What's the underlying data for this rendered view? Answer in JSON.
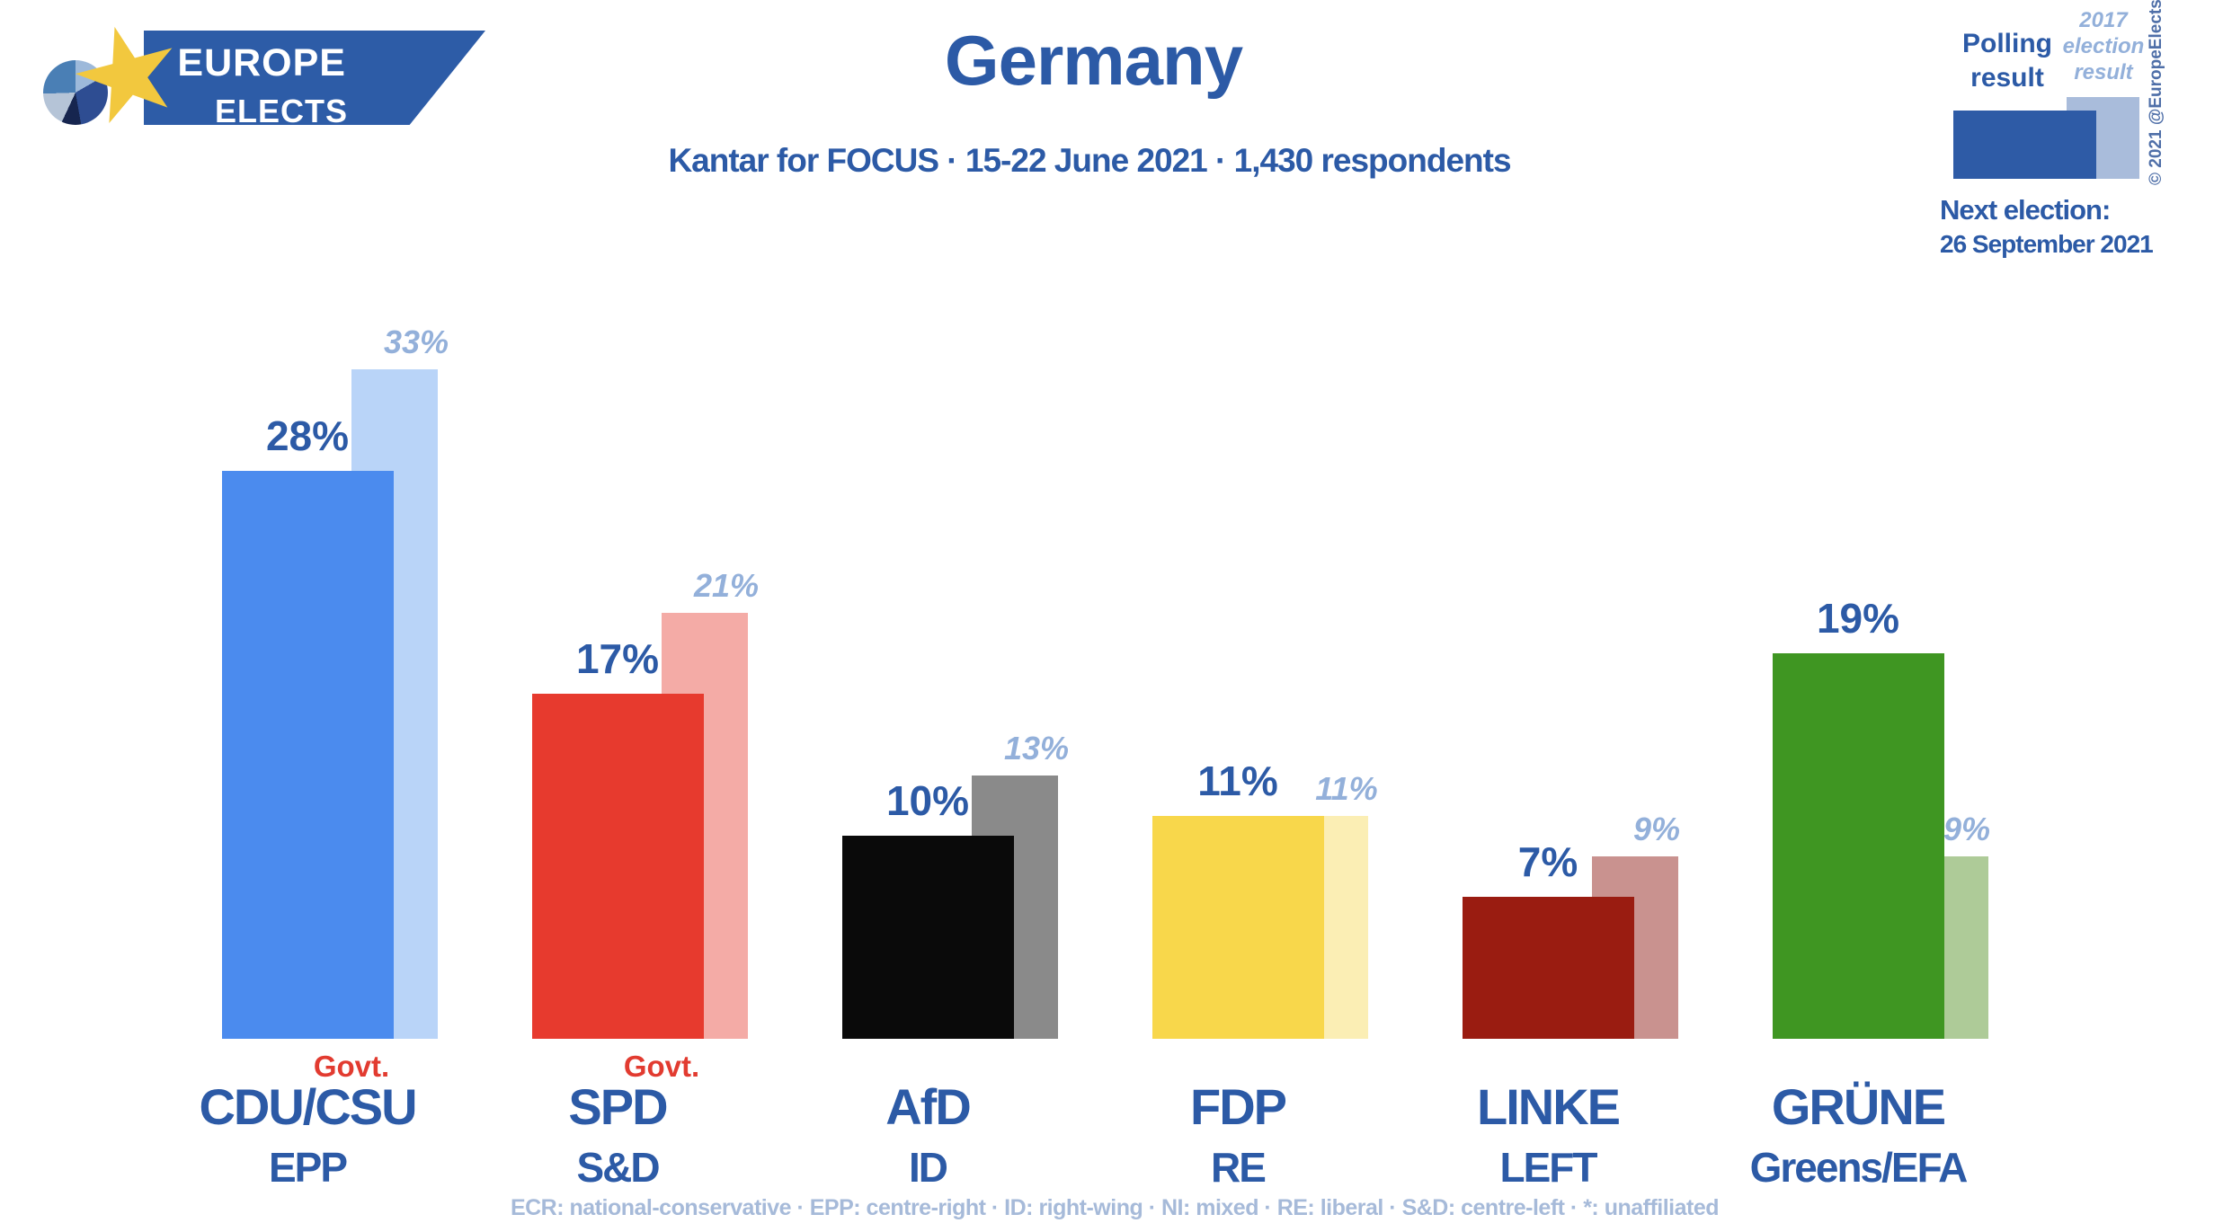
{
  "logo": {
    "line1": "EUROPE",
    "line2": "ELECTS"
  },
  "header": {
    "title": "Germany",
    "subtitle": "Kantar for FOCUS · 15-22 June 2021 · 1,430 respondents"
  },
  "legend": {
    "polling_label": "Polling\nresult",
    "election_label": "2017\nelection\nresult",
    "copyright": "© 2021 @EuropeElects",
    "next_election_label": "Next election:",
    "next_election_date": "26 September 2021",
    "colors": {
      "polling": "#2e5ba6",
      "election": "#a9bcdb"
    }
  },
  "chart_data": {
    "type": "bar",
    "unit": "%",
    "title": "Germany",
    "categories": [
      "CDU/CSU",
      "SPD",
      "AfD",
      "FDP",
      "LINKE",
      "GRÜNE"
    ],
    "series": [
      {
        "name": "Polling result",
        "values": [
          28,
          17,
          10,
          11,
          7,
          19
        ]
      },
      {
        "name": "2017 election result",
        "values": [
          33,
          21,
          13,
          11,
          9,
          9
        ]
      }
    ],
    "parties": [
      {
        "name": "CDU/CSU",
        "group": "EPP",
        "govt": true,
        "polling": 28,
        "election2017": 33,
        "polling_color": "#4b8bee",
        "election_color": "#b9d4f8"
      },
      {
        "name": "SPD",
        "group": "S&D",
        "govt": true,
        "polling": 17,
        "election2017": 21,
        "polling_color": "#e73a2e",
        "election_color": "#f4aba6"
      },
      {
        "name": "AfD",
        "group": "ID",
        "govt": false,
        "polling": 10,
        "election2017": 13,
        "polling_color": "#0a0a0a",
        "election_color": "#8a8a8a"
      },
      {
        "name": "FDP",
        "group": "RE",
        "govt": false,
        "polling": 11,
        "election2017": 11,
        "polling_color": "#f8d74b",
        "election_color": "#fbeeb4"
      },
      {
        "name": "LINKE",
        "group": "LEFT",
        "govt": false,
        "polling": 7,
        "election2017": 9,
        "polling_color": "#9a1c11",
        "election_color": "#c9928f"
      },
      {
        "name": "GRÜNE",
        "group": "Greens/EFA",
        "govt": false,
        "polling": 19,
        "election2017": 9,
        "polling_color": "#3f9622",
        "election_color": "#aecb98"
      }
    ],
    "govt_label": "Govt.",
    "ylim": [
      0,
      35
    ],
    "grid": false,
    "legend_position": "top-right"
  },
  "footer": {
    "text": "ECR: national-conservative · EPP: centre-right · ID: right-wing · NI: mixed · RE: liberal · S&D: centre-left · *: unaffiliated"
  },
  "colors": {
    "accent_blue": "#2c5aa6",
    "light_blue": "#93b0da",
    "govt_red": "#e23b30",
    "footer_blue": "#a6bad9",
    "banner_blue": "#2d5ca7",
    "star_yellow": "#f2c83e",
    "copyright_blue": "#4f6fa8"
  }
}
